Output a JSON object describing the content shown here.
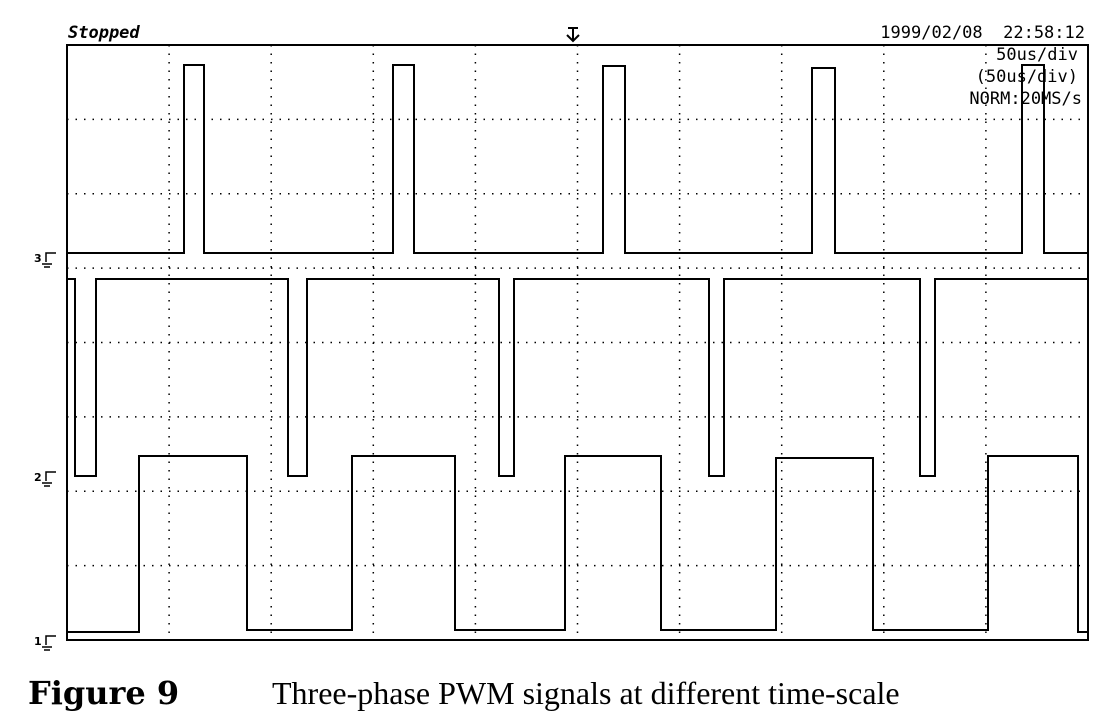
{
  "header": {
    "status": "Stopped",
    "timestamp": "1999/02/08  22:58:12"
  },
  "settings": [
    "50us/div",
    "(50us/div)",
    "NORM:20MS/s"
  ],
  "channels": [
    "3",
    "2",
    "1"
  ],
  "caption": {
    "label": "Figure 9",
    "text": "Three-phase PWM signals at different time-scale"
  }
}
